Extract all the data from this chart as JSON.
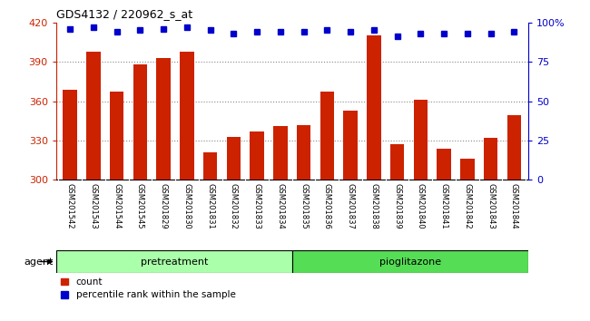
{
  "title": "GDS4132 / 220962_s_at",
  "samples": [
    "GSM201542",
    "GSM201543",
    "GSM201544",
    "GSM201545",
    "GSM201829",
    "GSM201830",
    "GSM201831",
    "GSM201832",
    "GSM201833",
    "GSM201834",
    "GSM201835",
    "GSM201836",
    "GSM201837",
    "GSM201838",
    "GSM201839",
    "GSM201840",
    "GSM201841",
    "GSM201842",
    "GSM201843",
    "GSM201844"
  ],
  "counts": [
    369,
    398,
    367,
    388,
    393,
    398,
    321,
    333,
    337,
    341,
    342,
    367,
    353,
    410,
    327,
    361,
    324,
    316,
    332,
    349
  ],
  "percentile": [
    96,
    97,
    94,
    95,
    96,
    97,
    95,
    93,
    94,
    94,
    94,
    95,
    94,
    95,
    91,
    93,
    93,
    93,
    93,
    94
  ],
  "pretreatment_indices": [
    0,
    1,
    2,
    3,
    4,
    5,
    6,
    7,
    8,
    9
  ],
  "pioglitazone_indices": [
    10,
    11,
    12,
    13,
    14,
    15,
    16,
    17,
    18,
    19
  ],
  "group_colors": {
    "pretreatment": "#AAFFAA",
    "pioglitazone": "#55DD55"
  },
  "bar_color": "#CC2200",
  "dot_color": "#0000CC",
  "ylim_left": [
    300,
    420
  ],
  "ylim_right": [
    0,
    100
  ],
  "yticks_left": [
    300,
    330,
    360,
    390,
    420
  ],
  "yticks_right": [
    0,
    25,
    50,
    75,
    100
  ],
  "yticklabels_right": [
    "0",
    "25",
    "50",
    "75",
    "100%"
  ],
  "grid_values": [
    330,
    360,
    390
  ],
  "plot_bg": "#FFFFFF",
  "xtick_bg": "#C8C8C8"
}
